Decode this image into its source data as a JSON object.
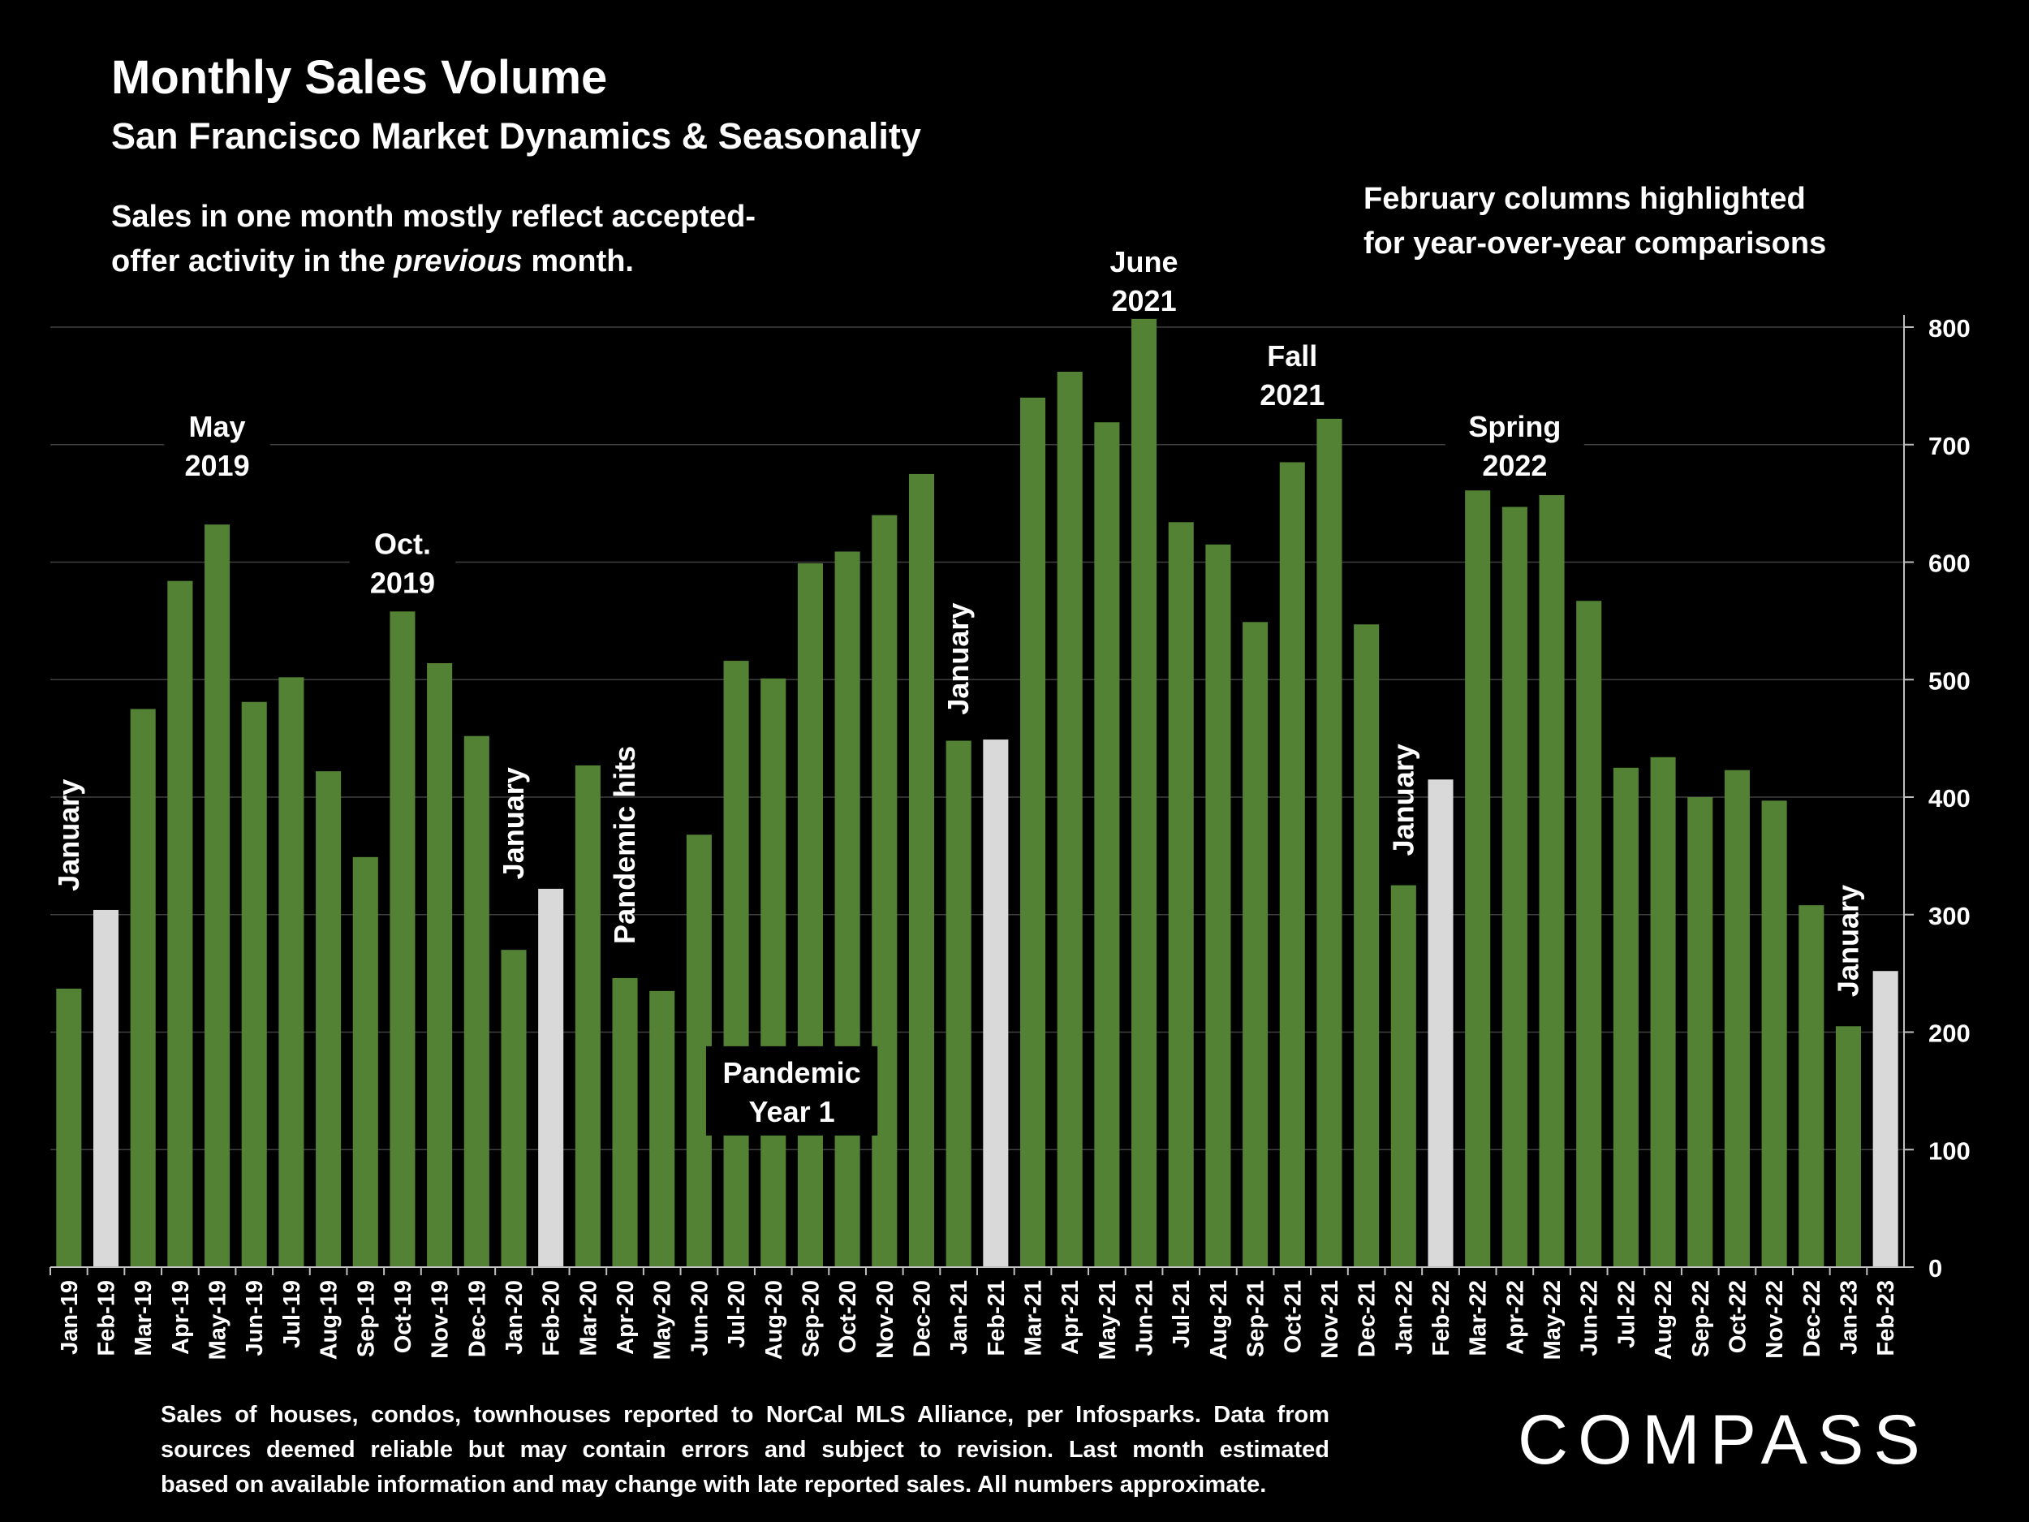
{
  "header": {
    "title": "Monthly Sales Volume",
    "subtitle": "San Francisco Market Dynamics & Seasonality",
    "note_left_line1": "Sales in one month mostly reflect accepted-",
    "note_left_line2_pre": "offer activity in the ",
    "note_left_line2_italic": "previous",
    "note_left_line2_post": " month.",
    "note_right_line1": "February columns highlighted",
    "note_right_line2": "for year-over-year comparisons"
  },
  "footer": {
    "line1": "Sales of houses, condos, townhouses reported to NorCal MLS Alliance, per Infosparks. Data from",
    "line2": "sources deemed reliable but may contain errors and subject to revision. Last month estimated",
    "line3": "based on available information and may change with late reported sales. All numbers approximate.",
    "logo": "COMPASS"
  },
  "colors": {
    "bar": "#548235",
    "highlight": "#d9d9d9",
    "background": "#000000",
    "grid": "#404040"
  },
  "chart_data": {
    "type": "bar",
    "title": "Monthly Sales Volume",
    "subtitle": "San Francisco Market Dynamics & Seasonality",
    "ylim": [
      0,
      800
    ],
    "yticks": [
      0,
      100,
      200,
      300,
      400,
      500,
      600,
      700,
      800
    ],
    "y_axis_side": "right",
    "grid": true,
    "categories": [
      "Jan-19",
      "Feb-19",
      "Mar-19",
      "Apr-19",
      "May-19",
      "Jun-19",
      "Jul-19",
      "Aug-19",
      "Sep-19",
      "Oct-19",
      "Nov-19",
      "Dec-19",
      "Jan-20",
      "Feb-20",
      "Mar-20",
      "Apr-20",
      "May-20",
      "Jun-20",
      "Jul-20",
      "Aug-20",
      "Sep-20",
      "Oct-20",
      "Nov-20",
      "Dec-20",
      "Jan-21",
      "Feb-21",
      "Mar-21",
      "Apr-21",
      "May-21",
      "Jun-21",
      "Jul-21",
      "Aug-21",
      "Sep-21",
      "Oct-21",
      "Nov-21",
      "Dec-21",
      "Jan-22",
      "Feb-22",
      "Mar-22",
      "Apr-22",
      "May-22",
      "Jun-22",
      "Jul-22",
      "Aug-22",
      "Sep-22",
      "Oct-22",
      "Nov-22",
      "Dec-22",
      "Jan-23",
      "Feb-23"
    ],
    "values": [
      237,
      304,
      475,
      584,
      632,
      481,
      502,
      422,
      349,
      558,
      514,
      452,
      270,
      322,
      427,
      246,
      235,
      368,
      516,
      501,
      599,
      609,
      640,
      675,
      448,
      449,
      740,
      762,
      719,
      807,
      634,
      615,
      549,
      685,
      726,
      547,
      325,
      415,
      661,
      647,
      657,
      567,
      425,
      434,
      400,
      423,
      397,
      308,
      205,
      252
    ],
    "highlighted": [
      "Feb-19",
      "Feb-20",
      "Feb-21",
      "Feb-22",
      "Feb-23"
    ],
    "annotations": [
      {
        "text": "May\n2019",
        "category": "May-19",
        "value": 700,
        "rotated": false,
        "boxed": true
      },
      {
        "text": "Oct.\n2019",
        "category": "Oct-19",
        "value": 600,
        "rotated": false,
        "boxed": true
      },
      {
        "text": "June\n2021",
        "category": "Jun-21",
        "value": 840,
        "rotated": false,
        "boxed": false
      },
      {
        "text": "Fall\n2021",
        "category": "Oct-21",
        "value": 760,
        "rotated": false,
        "boxed": true
      },
      {
        "text": "Spring\n2022",
        "category": "Apr-22",
        "value": 700,
        "rotated": false,
        "boxed": true
      },
      {
        "text": "January",
        "category": "Jan-19",
        "value": 320,
        "rotated": true,
        "boxed": false
      },
      {
        "text": "January",
        "category": "Jan-20",
        "value": 330,
        "rotated": true,
        "boxed": false
      },
      {
        "text": "Pandemic hits",
        "category": "Apr-20",
        "value": 275,
        "rotated": true,
        "boxed": false
      },
      {
        "text": "January",
        "category": "Jan-21",
        "value": 470,
        "rotated": true,
        "boxed": false
      },
      {
        "text": "January",
        "category": "Jan-22",
        "value": 350,
        "rotated": true,
        "boxed": false
      },
      {
        "text": "January",
        "category": "Jan-23",
        "value": 230,
        "rotated": true,
        "boxed": false
      },
      {
        "text": "Pandemic\nYear 1",
        "category": "Aug-20",
        "value": 150,
        "rotated": false,
        "boxed": true,
        "offset_cat": 0.5
      }
    ]
  }
}
